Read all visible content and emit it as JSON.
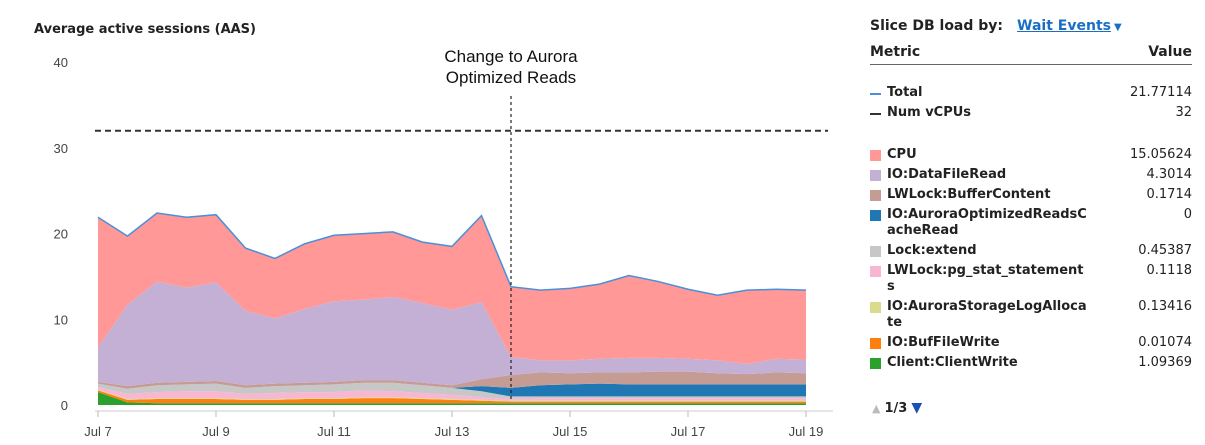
{
  "chart_data": {
    "type": "area",
    "title": "Average active sessions (AAS)",
    "x": [
      0,
      1,
      2,
      3,
      4,
      5,
      6,
      7,
      8,
      9,
      10,
      11,
      12,
      13,
      14,
      15,
      16,
      17,
      18,
      19,
      20,
      21,
      22,
      23,
      24
    ],
    "x_tick_labels": [
      "Jul 7",
      "Jul 9",
      "Jul 11",
      "Jul 13",
      "Jul 15",
      "Jul 17",
      "Jul 19"
    ],
    "ylim": [
      0,
      42
    ],
    "y_ticks": [
      0,
      10,
      20,
      30,
      40
    ],
    "grid": false,
    "series": [
      {
        "name": "Client:ClientWrite",
        "color": "#2ca02c",
        "values": [
          1.5,
          0.3,
          0.2,
          0.2,
          0.2,
          0.2,
          0.2,
          0.2,
          0.2,
          0.2,
          0.2,
          0.2,
          0.2,
          0.2,
          0.2,
          0.2,
          0.2,
          0.2,
          0.2,
          0.2,
          0.2,
          0.2,
          0.2,
          0.2,
          0.2
        ]
      },
      {
        "name": "IO:BufFileWrite",
        "color": "#ff7f0e",
        "values": [
          0.2,
          0.3,
          0.5,
          0.5,
          0.5,
          0.4,
          0.4,
          0.5,
          0.5,
          0.6,
          0.6,
          0.5,
          0.4,
          0.3,
          0.2,
          0.2,
          0.2,
          0.2,
          0.2,
          0.2,
          0.2,
          0.2,
          0.2,
          0.2,
          0.2
        ]
      },
      {
        "name": "IO:AuroraStorageLogAllocate",
        "color": "#dbdb8d",
        "values": [
          0.1,
          0.1,
          0.1,
          0.1,
          0.1,
          0.1,
          0.1,
          0.1,
          0.1,
          0.1,
          0.1,
          0.1,
          0.1,
          0.1,
          0.1,
          0.1,
          0.1,
          0.1,
          0.1,
          0.1,
          0.1,
          0.1,
          0.1,
          0.1,
          0.1
        ]
      },
      {
        "name": "LWLock:pg_stat_statements",
        "color": "#f7b6d2",
        "values": [
          0.3,
          0.6,
          0.7,
          0.8,
          0.8,
          0.6,
          0.7,
          0.7,
          0.7,
          0.8,
          0.7,
          0.6,
          0.5,
          0.3,
          0.2,
          0.3,
          0.3,
          0.3,
          0.3,
          0.3,
          0.3,
          0.3,
          0.3,
          0.3,
          0.3
        ]
      },
      {
        "name": "Lock:extend",
        "color": "#c7c7c7",
        "values": [
          0.4,
          0.6,
          0.8,
          0.8,
          0.9,
          0.7,
          0.8,
          0.8,
          0.9,
          0.9,
          1.0,
          0.9,
          0.8,
          0.7,
          0.3,
          0.2,
          0.2,
          0.2,
          0.2,
          0.2,
          0.2,
          0.2,
          0.2,
          0.2,
          0.2
        ]
      },
      {
        "name": "IO:AuroraOptimizedReadsCacheRead",
        "color": "#1f77b4",
        "values": [
          0,
          0,
          0,
          0,
          0,
          0,
          0,
          0,
          0,
          0,
          0,
          0,
          0,
          0.6,
          1.0,
          1.3,
          1.4,
          1.5,
          1.4,
          1.4,
          1.4,
          1.4,
          1.4,
          1.4,
          1.4
        ]
      },
      {
        "name": "LWLock:BufferContent",
        "color": "#c49c94",
        "values": [
          0.2,
          0.3,
          0.3,
          0.3,
          0.3,
          0.3,
          0.3,
          0.3,
          0.3,
          0.3,
          0.3,
          0.3,
          0.3,
          0.8,
          1.5,
          1.5,
          1.3,
          1.3,
          1.4,
          1.5,
          1.5,
          1.3,
          1.2,
          1.4,
          1.3
        ]
      },
      {
        "name": "IO:DataFileRead",
        "color": "#c5b0d5",
        "values": [
          4.0,
          9.5,
          11.8,
          11.0,
          11.5,
          8.7,
          7.6,
          8.6,
          9.4,
          9.4,
          9.7,
          9.3,
          8.8,
          9.0,
          2.1,
          1.4,
          1.5,
          1.6,
          1.7,
          1.6,
          1.5,
          1.5,
          1.2,
          1.6,
          1.6
        ]
      },
      {
        "name": "CPU",
        "color": "#ff9896",
        "values": [
          15.2,
          8.0,
          8.0,
          8.2,
          7.9,
          7.3,
          7.0,
          7.6,
          7.7,
          7.7,
          7.6,
          7.1,
          7.4,
          10.1,
          8.2,
          8.2,
          8.4,
          8.7,
          9.6,
          8.9,
          8.1,
          7.6,
          8.6,
          8.1,
          8.1
        ]
      }
    ],
    "total_line": {
      "name": "Total",
      "color": "#4a90d9"
    },
    "hline": {
      "name": "Num vCPUs",
      "value": 32
    },
    "vline": {
      "x": 14,
      "label_lines": [
        "Change to Aurora",
        "Optimized Reads"
      ]
    }
  },
  "panel": {
    "slice_label": "Slice DB load by:",
    "slice_value": "Wait Events",
    "header_metric": "Metric",
    "header_value": "Value",
    "rows_top": [
      {
        "name": "Total",
        "value": "21.77114",
        "style": "line",
        "color": "#4a90d9"
      },
      {
        "name": "Num vCPUs",
        "value": "32",
        "style": "dash",
        "color": "#333333"
      }
    ],
    "rows": [
      {
        "name": "CPU",
        "value": "15.05624",
        "color": "#ff9896"
      },
      {
        "name": "IO:DataFileRead",
        "value": "4.3014",
        "color": "#c5b0d5"
      },
      {
        "name": "LWLock:BufferContent",
        "value": "0.1714",
        "color": "#c49c94"
      },
      {
        "name": "IO:AuroraOptimizedReadsCacheRead",
        "value": "0",
        "color": "#1f77b4"
      },
      {
        "name": "Lock:extend",
        "value": "0.45387",
        "color": "#c7c7c7"
      },
      {
        "name": "LWLock:pg_stat_statements",
        "value": "0.1118",
        "color": "#f7b6d2"
      },
      {
        "name": "IO:AuroraStorageLogAllocate",
        "value": "0.13416",
        "color": "#dbdb8d"
      },
      {
        "name": "IO:BufFileWrite",
        "value": "0.01074",
        "color": "#ff7f0e"
      },
      {
        "name": "Client:ClientWrite",
        "value": "1.09369",
        "color": "#2ca02c"
      }
    ],
    "pager": "1/3"
  }
}
